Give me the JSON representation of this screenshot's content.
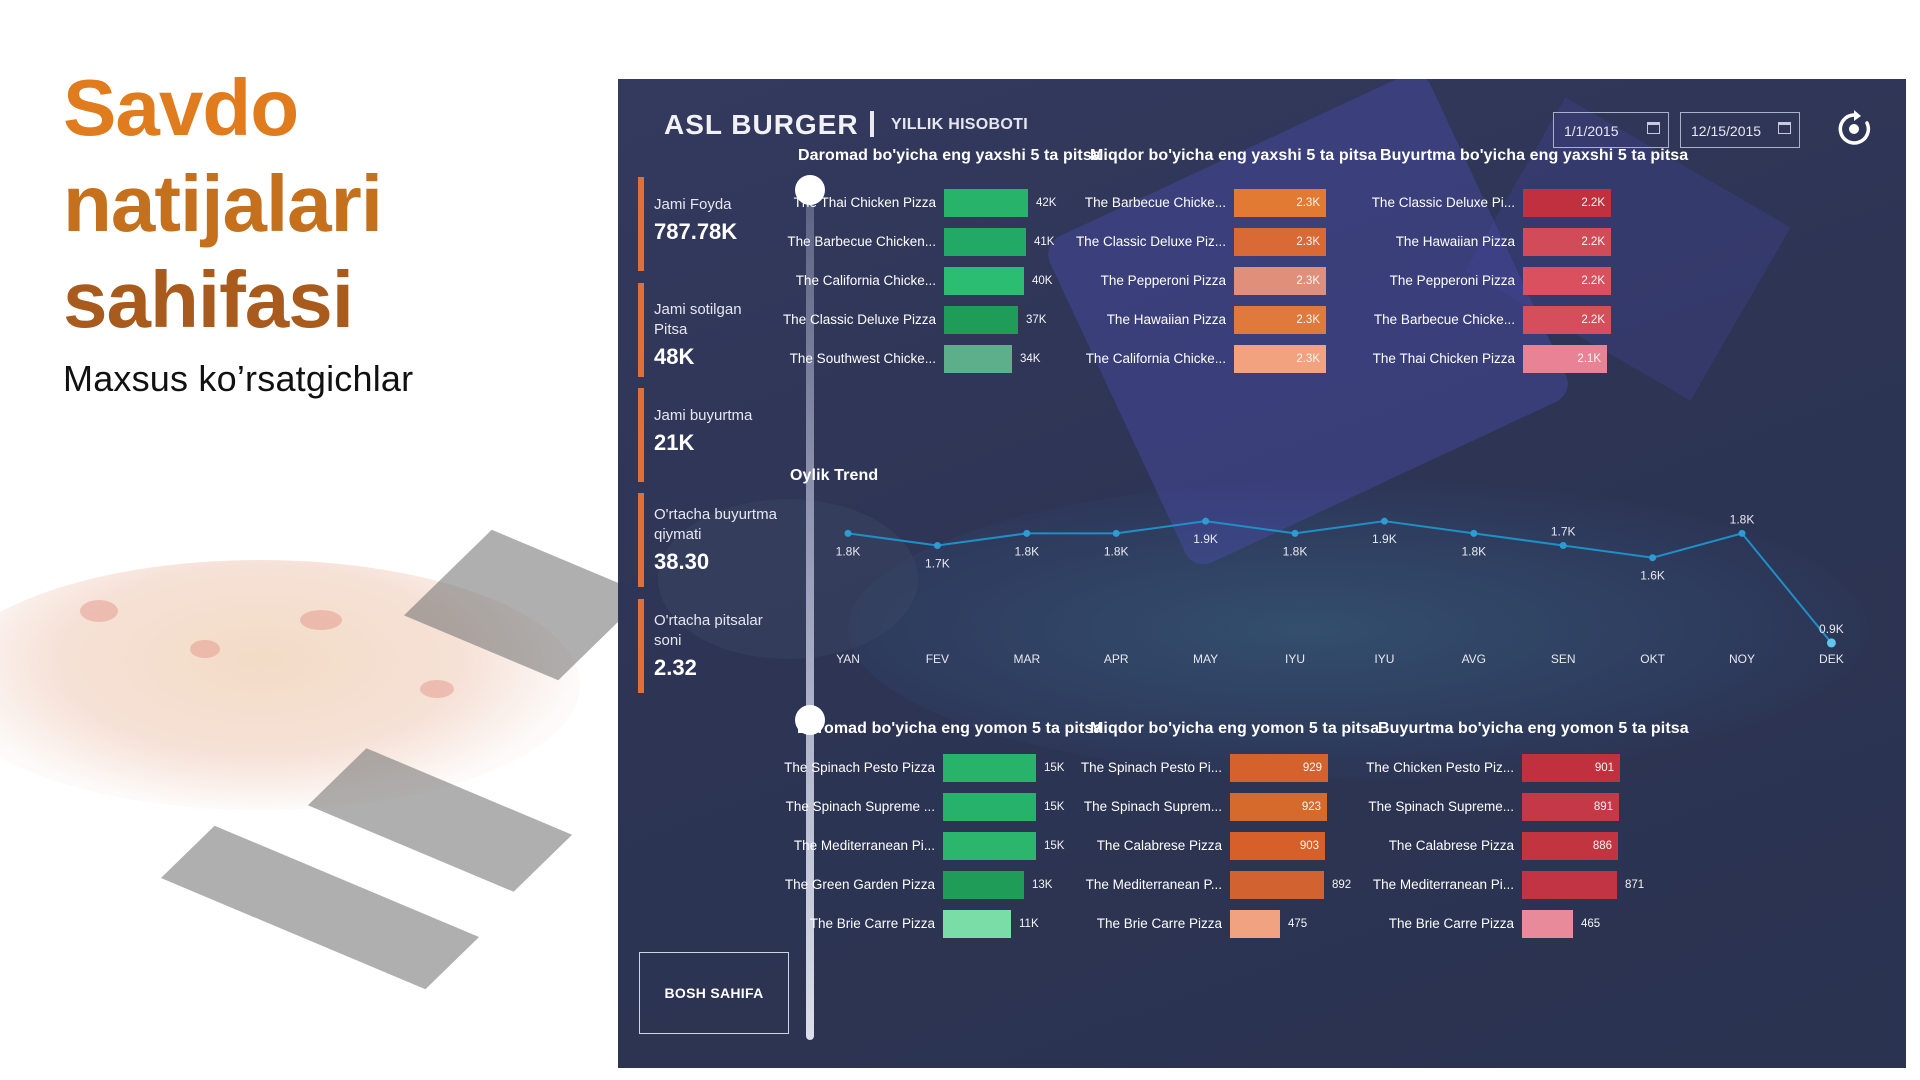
{
  "page": {
    "title_lines": [
      "Savdo",
      "natijalari",
      "sahifasi"
    ],
    "subtitle": "Maxsus ko’rsatgichlar"
  },
  "dashboard": {
    "brand": "ASL BURGER",
    "report_name": "YILLIK HISOBOTI",
    "date_from": "1/1/2015",
    "date_to": "12/15/2015",
    "reset_icon": "refresh-icon",
    "home_button": "BOSH SAHIFA",
    "kpis": [
      {
        "label": "Jami Foyda",
        "value": "787.78K"
      },
      {
        "label": "Jami sotilgan Pitsa",
        "value": "48K"
      },
      {
        "label": "Jami buyurtma",
        "value": "21K"
      },
      {
        "label": "O'rtacha buyurtma qiymati",
        "value": "38.30"
      },
      {
        "label": "O'rtacha pitsalar soni",
        "value": "2.32"
      }
    ],
    "colors": {
      "accent": "#E0703A",
      "green": "#27B46A",
      "orange": "#E37A33",
      "red": "#C8394A",
      "title_orange": "#E07C1E"
    }
  },
  "chart_data": [
    {
      "type": "bar",
      "title": "Daromad bo'yicha eng yaxshi 5 ta pitsa",
      "categories": [
        "The Thai Chicken Pizza",
        "The Barbecue Chicken...",
        "The California Chicke...",
        "The Classic Deluxe Pizza",
        "The Southwest Chicke..."
      ],
      "values": [
        42,
        41,
        40,
        37,
        34
      ],
      "labels": [
        "42K",
        "41K",
        "40K",
        "37K",
        "34K"
      ],
      "xlim": [
        0,
        48
      ]
    },
    {
      "type": "bar",
      "title": "Miqdor bo'yicha eng yaxshi 5 ta pitsa",
      "categories": [
        "The Barbecue Chicke...",
        "The Classic Deluxe Piz...",
        "The Pepperoni Pizza",
        "The Hawaiian Pizza",
        "The California Chicke..."
      ],
      "values": [
        2.3,
        2.3,
        2.3,
        2.3,
        2.3
      ],
      "labels": [
        "2.3K",
        "2.3K",
        "2.3K",
        "2.3K",
        "2.3K"
      ],
      "xlim": [
        0,
        2.6
      ]
    },
    {
      "type": "bar",
      "title": "Buyurtma bo'yicha eng yaxshi 5 ta pitsa",
      "categories": [
        "The Classic Deluxe Pi...",
        "The Hawaiian Pizza",
        "The Pepperoni Pizza",
        "The Barbecue Chicke...",
        "The Thai Chicken Pizza"
      ],
      "values": [
        2.2,
        2.2,
        2.2,
        2.2,
        2.1
      ],
      "labels": [
        "2.2K",
        "2.2K",
        "2.2K",
        "2.2K",
        "2.1K"
      ],
      "xlim": [
        0,
        2.55
      ]
    },
    {
      "type": "line",
      "title": "Oylik Trend",
      "x": [
        "YAN",
        "FEV",
        "MAR",
        "APR",
        "MAY",
        "IYU",
        "IYU",
        "AVG",
        "SEN",
        "OKT",
        "NOY",
        "DEK"
      ],
      "values": [
        1.8,
        1.7,
        1.8,
        1.8,
        1.9,
        1.8,
        1.9,
        1.8,
        1.7,
        1.6,
        1.8,
        0.9
      ],
      "labels": [
        "1.8K",
        "1.7K",
        "1.8K",
        "1.8K",
        "1.9K",
        "1.8K",
        "1.9K",
        "1.8K",
        "1.7K",
        "1.6K",
        "1.8K",
        "0.9K"
      ],
      "ylim": [
        0.85,
        2.0
      ]
    },
    {
      "type": "bar",
      "title": "Daromad bo'yicha eng yomon 5 ta pitsa",
      "categories": [
        "The Spinach Pesto Pizza",
        "The Spinach Supreme ...",
        "The Mediterranean Pi...",
        "The Green Garden Pizza",
        "The Brie Carre Pizza"
      ],
      "values": [
        15,
        15,
        15,
        13,
        11
      ],
      "labels": [
        "15K",
        "15K",
        "15K",
        "13K",
        "11K"
      ],
      "xlim": [
        0,
        15.5
      ]
    },
    {
      "type": "bar",
      "title": "Miqdor bo'yicha eng yomon 5 ta pitsa",
      "categories": [
        "The Spinach Pesto Pi...",
        "The Spinach Suprem...",
        "The Calabrese Pizza",
        "The Mediterranean P...",
        "The Brie Carre Pizza"
      ],
      "values": [
        929,
        923,
        903,
        892,
        475
      ],
      "labels": [
        "929",
        "923",
        "903",
        "892",
        "475"
      ],
      "xlim": [
        0,
        929
      ]
    },
    {
      "type": "bar",
      "title": "Buyurtma bo'yicha eng yomon 5 ta pitsa",
      "categories": [
        "The Chicken Pesto Piz...",
        "The Spinach Supreme...",
        "The Calabrese Pizza",
        "The Mediterranean Pi...",
        "The Brie Carre Pizza"
      ],
      "values": [
        901,
        891,
        886,
        871,
        465
      ],
      "labels": [
        "901",
        "891",
        "886",
        "871",
        "465"
      ],
      "xlim": [
        0,
        901
      ]
    }
  ]
}
